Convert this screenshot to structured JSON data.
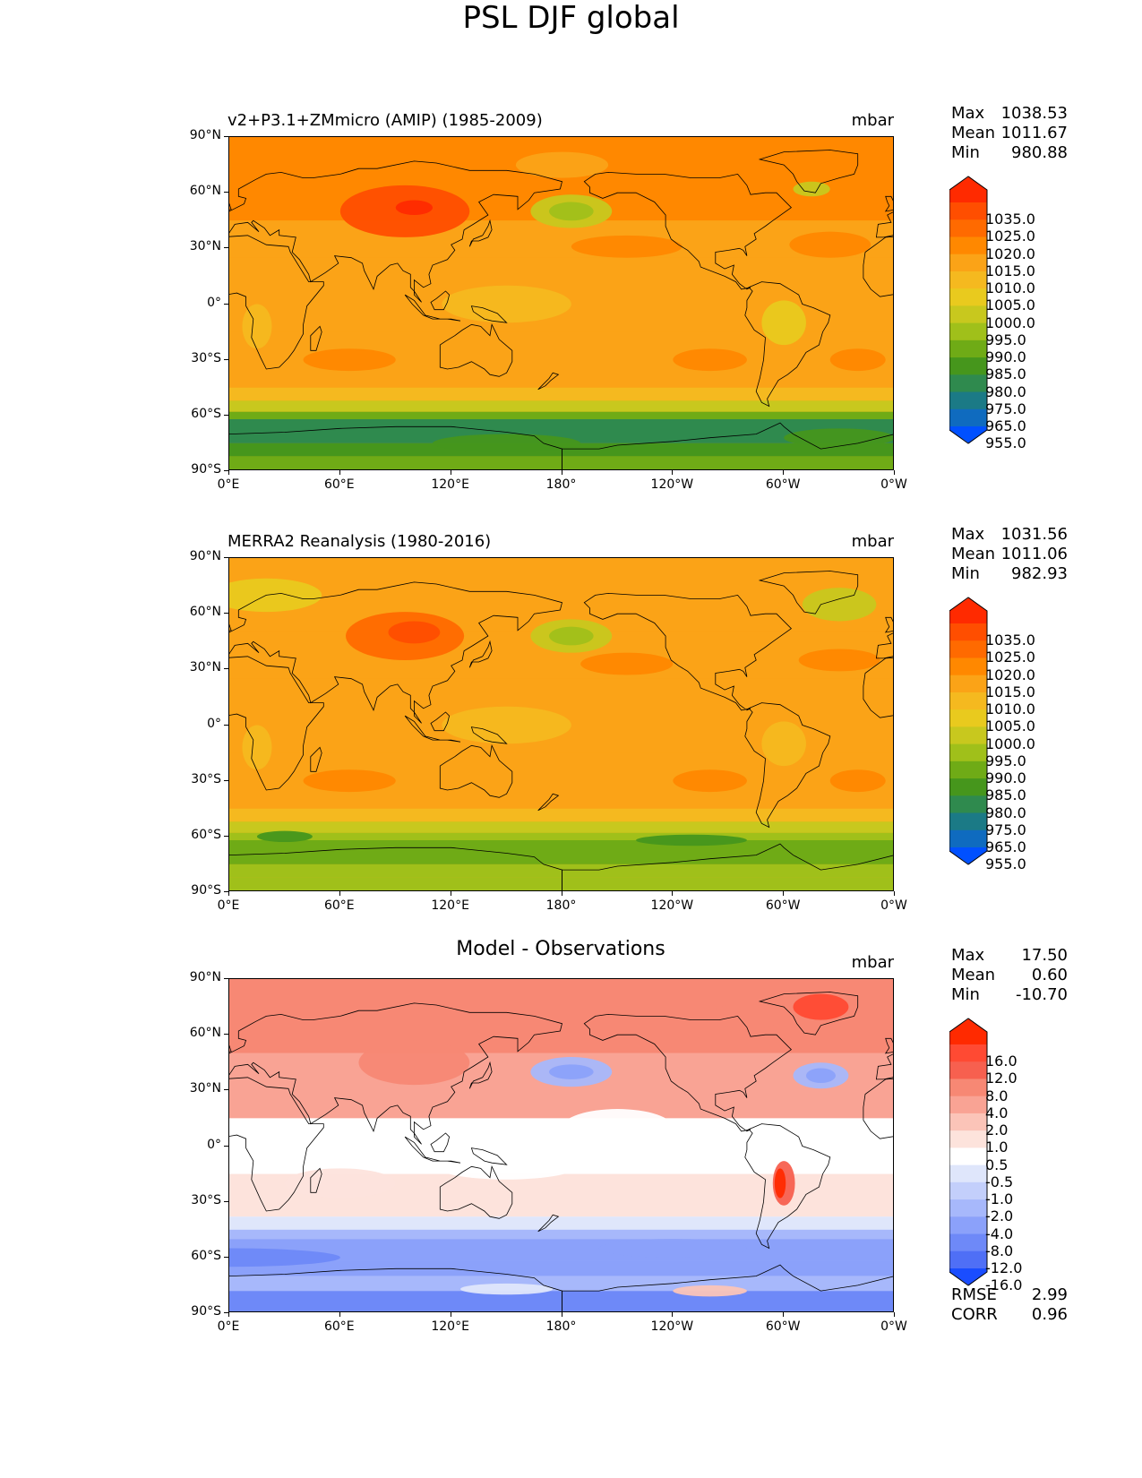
{
  "title": "PSL DJF global",
  "lat_labels": [
    "90°N",
    "60°N",
    "30°N",
    "0°",
    "30°S",
    "60°S",
    "90°S"
  ],
  "lon_labels": [
    "0°E",
    "60°E",
    "120°E",
    "180°",
    "120°W",
    "60°W",
    "0°W"
  ],
  "panels": [
    {
      "name": "test",
      "title": "v2+P3.1+ZMmicro (AMIP) (1985-2009)",
      "units": "mbar",
      "stats": {
        "max_label": "Max",
        "max": "1038.53",
        "mean_label": "Mean",
        "mean": "1011.67",
        "min_label": "Min",
        "min": "980.88"
      },
      "colorbar": {
        "labels": [
          "1035.0",
          "1025.0",
          "1020.0",
          "1015.0",
          "1010.0",
          "1005.0",
          "1000.0",
          "995.0",
          "990.0",
          "985.0",
          "980.0",
          "975.0",
          "965.0",
          "955.0"
        ],
        "colors": [
          "#ff2a00",
          "#ff4e00",
          "#ff6a00",
          "#ff8800",
          "#fba317",
          "#f5b91f",
          "#e9ca1e",
          "#c8c81e",
          "#a0c01a",
          "#6fab16",
          "#46961c",
          "#2f8a4e",
          "#1b7a86",
          "#0f6bbf",
          "#0050ff"
        ]
      }
    },
    {
      "name": "reference",
      "title": "MERRA2 Reanalysis (1980-2016)",
      "units": "mbar",
      "stats": {
        "max_label": "Max",
        "max": "1031.56",
        "mean_label": "Mean",
        "mean": "1011.06",
        "min_label": "Min",
        "min": "982.93"
      },
      "colorbar": {
        "labels": [
          "1035.0",
          "1025.0",
          "1020.0",
          "1015.0",
          "1010.0",
          "1005.0",
          "1000.0",
          "995.0",
          "990.0",
          "985.0",
          "980.0",
          "975.0",
          "965.0",
          "955.0"
        ],
        "colors": [
          "#ff2a00",
          "#ff4e00",
          "#ff6a00",
          "#ff8800",
          "#fba317",
          "#f5b91f",
          "#e9ca1e",
          "#c8c81e",
          "#a0c01a",
          "#6fab16",
          "#46961c",
          "#2f8a4e",
          "#1b7a86",
          "#0f6bbf",
          "#0050ff"
        ]
      }
    },
    {
      "name": "difference",
      "title": "Model - Observations",
      "units": "mbar",
      "stats": {
        "max_label": "Max",
        "max": "17.50",
        "mean_label": "Mean",
        "mean": "0.60",
        "min_label": "Min",
        "min": "-10.70"
      },
      "colorbar": {
        "labels": [
          "16.0",
          "12.0",
          "8.0",
          "4.0",
          "2.0",
          "1.0",
          "0.5",
          "-0.5",
          "-1.0",
          "-2.0",
          "-4.0",
          "-8.0",
          "-12.0",
          "-16.0"
        ],
        "colors": [
          "#ff2a00",
          "#ff4a33",
          "#f7604f",
          "#f78874",
          "#f9a394",
          "#fbc4b8",
          "#fde3dc",
          "#ffffff",
          "#dfe6fb",
          "#c3cffb",
          "#a7b8fb",
          "#8ba1fa",
          "#6e89f8",
          "#4f6ff6",
          "#1a4dff"
        ]
      },
      "metrics": {
        "rmse_label": "RMSE",
        "rmse": "2.99",
        "corr_label": "CORR",
        "corr": "0.96"
      }
    }
  ]
}
